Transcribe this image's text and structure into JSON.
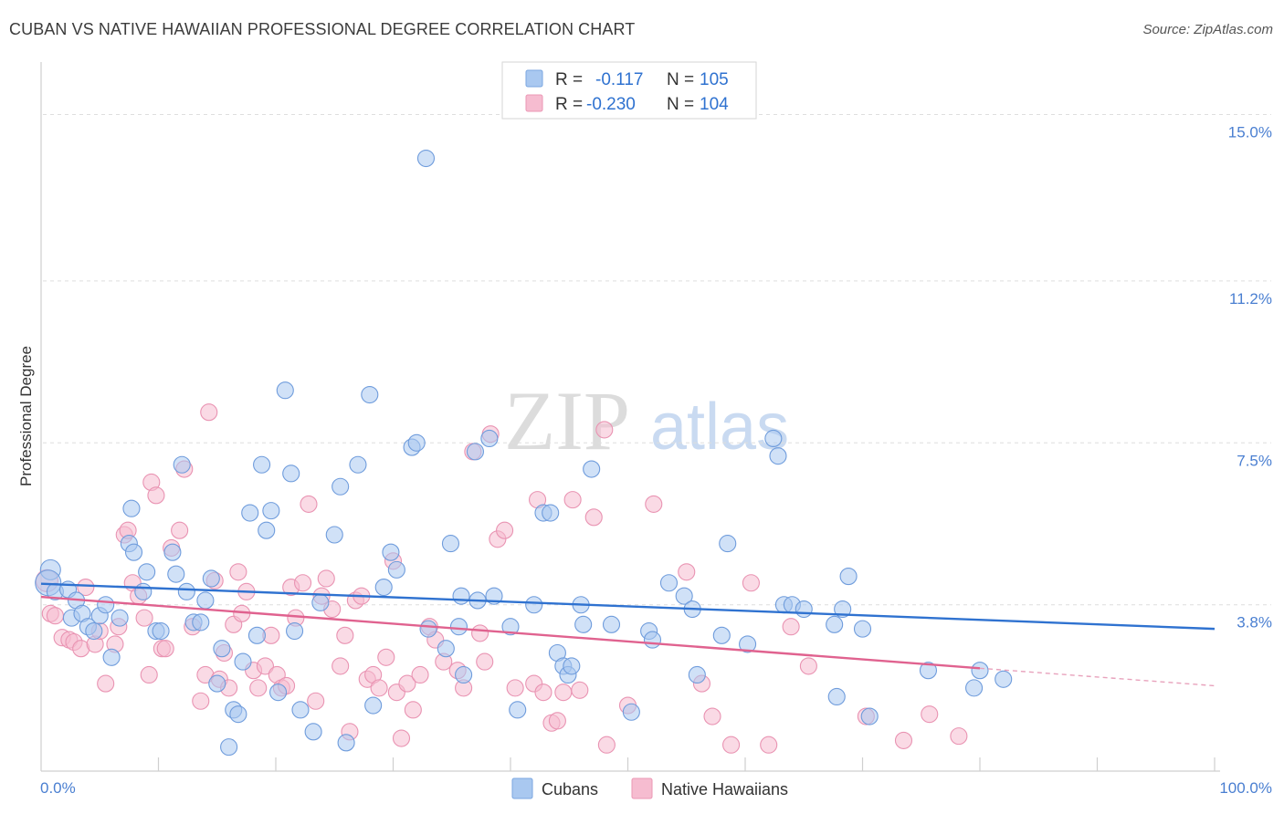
{
  "header": {
    "title": "CUBAN VS NATIVE HAWAIIAN PROFESSIONAL DEGREE CORRELATION CHART",
    "source": "Source: ZipAtlas.com"
  },
  "watermark": {
    "part1": "ZIP",
    "part2": "atlas"
  },
  "colors": {
    "blue_fill": "#a9c8f0",
    "blue_stroke": "#7aa6e0",
    "blue_line": "#2f72d0",
    "pink_fill": "#f6bcd0",
    "pink_stroke": "#eb97b4",
    "pink_line": "#e0628f",
    "axis_label": "#4a7fd1",
    "grid": "#dddddd"
  },
  "stats_legend": [
    {
      "r_label": "R =",
      "r_value": "-0.117",
      "n_label": "N =",
      "n_value": "105"
    },
    {
      "r_label": "R =",
      "r_value": "-0.230",
      "n_label": "N =",
      "n_value": "104"
    }
  ],
  "chart_data": {
    "type": "scatter",
    "title": "CUBAN VS NATIVE HAWAIIAN PROFESSIONAL DEGREE CORRELATION CHART",
    "xlabel": "",
    "ylabel": "Professional Degree",
    "xlim": [
      0,
      100
    ],
    "ylim": [
      0,
      16.2
    ],
    "x_tick_labels": [
      "0.0%",
      "100.0%"
    ],
    "y_ticks": [
      3.8,
      7.5,
      11.2,
      15.0
    ],
    "y_tick_labels": [
      "3.8%",
      "7.5%",
      "11.2%",
      "15.0%"
    ],
    "grid": true,
    "legend_position": "top-center and bottom",
    "series": [
      {
        "name": "Cubans",
        "color": "#a9c8f0",
        "trend": {
          "x": [
            0,
            100
          ],
          "y": [
            4.28,
            3.25
          ]
        },
        "points": [
          [
            0.8,
            4.6
          ],
          [
            0.6,
            4.3
          ],
          [
            1.2,
            4.1
          ],
          [
            2.3,
            4.15
          ],
          [
            2.6,
            3.5
          ],
          [
            3.0,
            3.9
          ],
          [
            3.5,
            3.6
          ],
          [
            4.0,
            3.3
          ],
          [
            4.5,
            3.2
          ],
          [
            5.0,
            3.55
          ],
          [
            5.5,
            3.8
          ],
          [
            6.0,
            2.6
          ],
          [
            6.7,
            3.5
          ],
          [
            7.5,
            5.2
          ],
          [
            7.7,
            6.0
          ],
          [
            7.9,
            5.0
          ],
          [
            8.7,
            4.1
          ],
          [
            9.0,
            4.55
          ],
          [
            9.8,
            3.2
          ],
          [
            10.2,
            3.2
          ],
          [
            11.2,
            5.0
          ],
          [
            11.5,
            4.5
          ],
          [
            12.0,
            7.0
          ],
          [
            12.4,
            4.1
          ],
          [
            13.0,
            3.4
          ],
          [
            13.6,
            3.4
          ],
          [
            14.0,
            3.9
          ],
          [
            14.5,
            4.4
          ],
          [
            15.0,
            2.0
          ],
          [
            15.4,
            2.8
          ],
          [
            16.0,
            0.55
          ],
          [
            16.4,
            1.4
          ],
          [
            16.8,
            1.3
          ],
          [
            17.2,
            2.5
          ],
          [
            17.8,
            5.9
          ],
          [
            18.4,
            3.1
          ],
          [
            18.8,
            7.0
          ],
          [
            19.2,
            5.5
          ],
          [
            19.6,
            5.95
          ],
          [
            20.2,
            1.8
          ],
          [
            20.8,
            8.7
          ],
          [
            21.3,
            6.8
          ],
          [
            21.6,
            3.2
          ],
          [
            22.1,
            1.4
          ],
          [
            23.2,
            0.9
          ],
          [
            23.8,
            3.85
          ],
          [
            25.0,
            5.4
          ],
          [
            25.5,
            6.5
          ],
          [
            26.0,
            0.65
          ],
          [
            27.0,
            7.0
          ],
          [
            28.0,
            8.6
          ],
          [
            28.3,
            1.5
          ],
          [
            29.2,
            4.2
          ],
          [
            29.8,
            5.0
          ],
          [
            30.3,
            4.6
          ],
          [
            31.6,
            7.4
          ],
          [
            32.0,
            7.5
          ],
          [
            32.8,
            14.0
          ],
          [
            33.0,
            3.25
          ],
          [
            34.5,
            2.8
          ],
          [
            34.9,
            5.2
          ],
          [
            35.6,
            3.3
          ],
          [
            35.8,
            4.0
          ],
          [
            36.0,
            2.2
          ],
          [
            37.0,
            7.3
          ],
          [
            37.2,
            3.9
          ],
          [
            38.2,
            7.6
          ],
          [
            38.6,
            4.0
          ],
          [
            40.0,
            3.3
          ],
          [
            40.6,
            1.4
          ],
          [
            42.0,
            3.8
          ],
          [
            42.8,
            5.9
          ],
          [
            43.4,
            5.9
          ],
          [
            44.0,
            2.7
          ],
          [
            44.5,
            2.4
          ],
          [
            44.9,
            2.2
          ],
          [
            45.2,
            2.4
          ],
          [
            46.0,
            3.8
          ],
          [
            46.2,
            3.35
          ],
          [
            46.9,
            6.9
          ],
          [
            48.6,
            3.35
          ],
          [
            50.3,
            1.35
          ],
          [
            51.8,
            3.2
          ],
          [
            52.1,
            3.0
          ],
          [
            53.5,
            4.3
          ],
          [
            54.8,
            4.0
          ],
          [
            55.5,
            3.7
          ],
          [
            55.9,
            2.2
          ],
          [
            58.0,
            3.1
          ],
          [
            58.5,
            5.2
          ],
          [
            60.2,
            2.9
          ],
          [
            62.4,
            7.6
          ],
          [
            62.8,
            7.2
          ],
          [
            63.3,
            3.8
          ],
          [
            64.0,
            3.8
          ],
          [
            65.0,
            3.7
          ],
          [
            67.6,
            3.35
          ],
          [
            67.8,
            1.7
          ],
          [
            68.3,
            3.7
          ],
          [
            68.8,
            4.45
          ],
          [
            70.0,
            3.25
          ],
          [
            70.6,
            1.25
          ],
          [
            75.6,
            2.3
          ],
          [
            79.5,
            1.9
          ],
          [
            80.0,
            2.3
          ],
          [
            82.0,
            2.1
          ]
        ]
      },
      {
        "name": "Native Hawaiians",
        "color": "#f6bcd0",
        "trend": {
          "x": [
            0,
            80
          ],
          "y": [
            3.98,
            2.35
          ]
        },
        "trend_ext": {
          "x": [
            80,
            100
          ],
          "y": [
            2.35,
            1.95
          ]
        },
        "points": [
          [
            0.5,
            4.35
          ],
          [
            0.8,
            3.6
          ],
          [
            1.2,
            3.55
          ],
          [
            1.8,
            3.05
          ],
          [
            2.4,
            3.0
          ],
          [
            2.8,
            2.95
          ],
          [
            3.4,
            2.8
          ],
          [
            3.8,
            4.2
          ],
          [
            4.6,
            2.9
          ],
          [
            5.0,
            3.2
          ],
          [
            5.5,
            2.0
          ],
          [
            6.3,
            2.9
          ],
          [
            6.6,
            3.3
          ],
          [
            7.1,
            5.4
          ],
          [
            7.4,
            5.5
          ],
          [
            7.8,
            4.3
          ],
          [
            8.3,
            4.0
          ],
          [
            8.8,
            3.5
          ],
          [
            9.2,
            2.2
          ],
          [
            9.4,
            6.6
          ],
          [
            9.8,
            6.3
          ],
          [
            10.3,
            2.8
          ],
          [
            10.6,
            2.8
          ],
          [
            11.1,
            5.1
          ],
          [
            11.8,
            5.5
          ],
          [
            12.2,
            6.9
          ],
          [
            12.9,
            3.3
          ],
          [
            13.6,
            1.6
          ],
          [
            14.0,
            2.2
          ],
          [
            14.3,
            8.2
          ],
          [
            14.8,
            4.35
          ],
          [
            15.2,
            2.1
          ],
          [
            15.6,
            2.7
          ],
          [
            16.0,
            1.9
          ],
          [
            16.4,
            3.35
          ],
          [
            16.8,
            4.55
          ],
          [
            17.1,
            3.6
          ],
          [
            17.5,
            4.1
          ],
          [
            18.1,
            2.3
          ],
          [
            18.5,
            1.9
          ],
          [
            19.1,
            2.4
          ],
          [
            19.6,
            3.1
          ],
          [
            20.1,
            2.2
          ],
          [
            20.5,
            1.9
          ],
          [
            20.9,
            1.95
          ],
          [
            21.3,
            4.2
          ],
          [
            21.7,
            3.5
          ],
          [
            22.3,
            4.3
          ],
          [
            22.8,
            6.1
          ],
          [
            23.4,
            1.6
          ],
          [
            23.9,
            4.0
          ],
          [
            24.3,
            4.4
          ],
          [
            24.8,
            3.7
          ],
          [
            25.5,
            2.4
          ],
          [
            25.9,
            3.1
          ],
          [
            26.3,
            0.9
          ],
          [
            26.8,
            3.9
          ],
          [
            27.3,
            4.0
          ],
          [
            27.8,
            2.1
          ],
          [
            28.3,
            2.2
          ],
          [
            28.8,
            1.9
          ],
          [
            29.4,
            2.6
          ],
          [
            30.0,
            4.8
          ],
          [
            30.3,
            1.8
          ],
          [
            30.7,
            0.75
          ],
          [
            31.2,
            2.0
          ],
          [
            31.7,
            1.4
          ],
          [
            32.3,
            2.2
          ],
          [
            33.1,
            3.3
          ],
          [
            33.6,
            3.0
          ],
          [
            34.3,
            2.5
          ],
          [
            35.5,
            2.3
          ],
          [
            36.0,
            1.9
          ],
          [
            36.8,
            7.3
          ],
          [
            37.4,
            3.15
          ],
          [
            37.8,
            2.5
          ],
          [
            38.3,
            7.7
          ],
          [
            38.9,
            5.3
          ],
          [
            39.5,
            5.5
          ],
          [
            40.4,
            1.9
          ],
          [
            42.0,
            2.0
          ],
          [
            42.3,
            6.2
          ],
          [
            42.8,
            1.8
          ],
          [
            43.5,
            1.1
          ],
          [
            44.0,
            1.15
          ],
          [
            44.5,
            1.8
          ],
          [
            45.3,
            6.2
          ],
          [
            45.9,
            1.85
          ],
          [
            47.1,
            5.8
          ],
          [
            48.0,
            7.8
          ],
          [
            48.2,
            0.6
          ],
          [
            50.0,
            1.5
          ],
          [
            52.2,
            6.1
          ],
          [
            55.0,
            4.55
          ],
          [
            56.3,
            2.0
          ],
          [
            57.2,
            1.25
          ],
          [
            58.8,
            0.6
          ],
          [
            60.5,
            4.3
          ],
          [
            62.0,
            0.6
          ],
          [
            63.9,
            3.3
          ],
          [
            65.4,
            2.4
          ],
          [
            70.3,
            1.25
          ],
          [
            73.5,
            0.7
          ],
          [
            75.7,
            1.3
          ],
          [
            78.2,
            0.8
          ]
        ]
      }
    ]
  },
  "bottom_legend": [
    {
      "label": "Cubans"
    },
    {
      "label": "Native Hawaiians"
    }
  ]
}
